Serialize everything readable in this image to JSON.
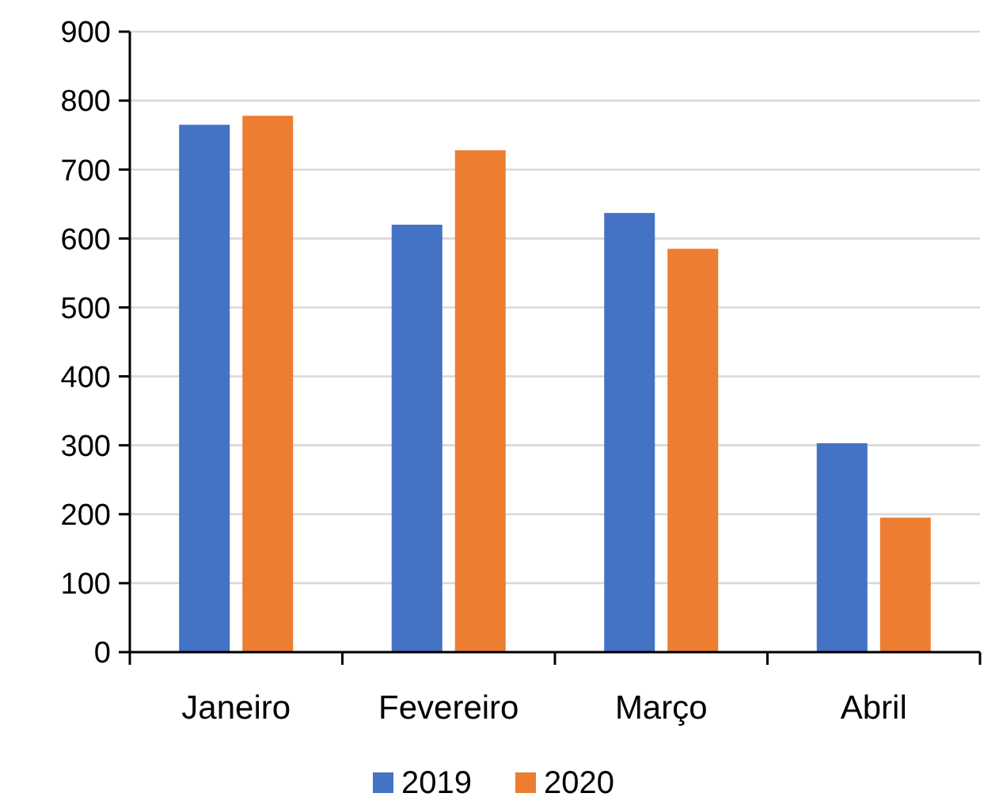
{
  "chart_data": {
    "type": "bar",
    "categories": [
      "Janeiro",
      "Fevereiro",
      "Março",
      "Abril"
    ],
    "series": [
      {
        "name": "2019",
        "color": "#4472c4",
        "values": [
          765,
          620,
          637,
          303
        ]
      },
      {
        "name": "2020",
        "color": "#ed7d31",
        "values": [
          778,
          728,
          585,
          195
        ]
      }
    ],
    "ylim": [
      0,
      900
    ],
    "yticks": [
      0,
      100,
      200,
      300,
      400,
      500,
      600,
      700,
      800,
      900
    ],
    "grid": "y",
    "legend": "bottom"
  }
}
